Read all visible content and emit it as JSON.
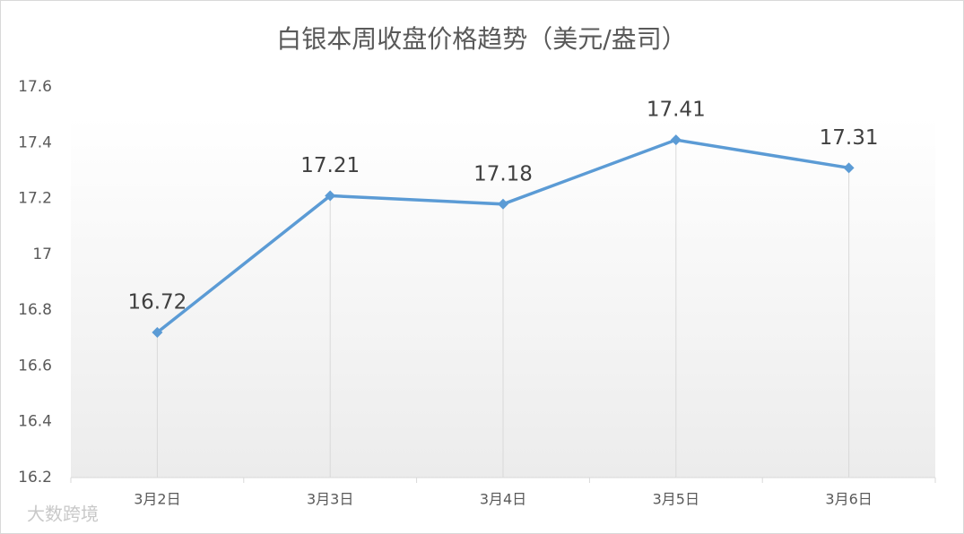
{
  "chart_data": {
    "type": "line",
    "title": "白银本周收盘价格趋势（美元/盎司）",
    "categories": [
      "3月2日",
      "3月3日",
      "3月4日",
      "3月5日",
      "3月6日"
    ],
    "values": [
      16.72,
      17.21,
      17.18,
      17.41,
      17.31
    ],
    "color": "#5b9bd5",
    "ylim": [
      16.2,
      17.6
    ],
    "yticks": [
      16.2,
      16.4,
      16.6,
      16.8,
      17,
      17.2,
      17.4,
      17.6
    ],
    "drop_lines": true,
    "data_labels": true,
    "watermark": "大数跨境"
  }
}
